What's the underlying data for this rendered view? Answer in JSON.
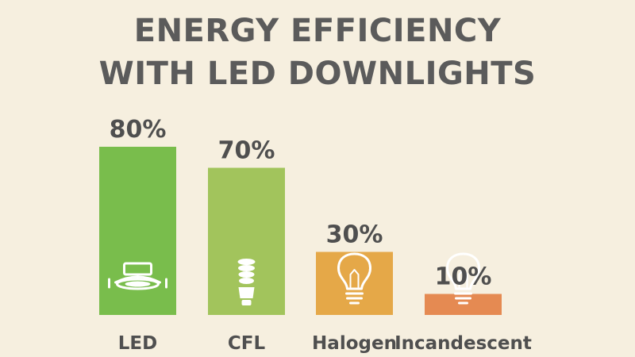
{
  "chart_data": {
    "type": "bar",
    "title_lines": [
      "ENERGY EFFICIENCY",
      "WITH LED DOWNLIGHTS"
    ],
    "categories": [
      "LED",
      "CFL",
      "Halogen",
      "Incandescent"
    ],
    "values": [
      80,
      70,
      30,
      10
    ],
    "value_labels": [
      "80%",
      "70%",
      "30%",
      "10%"
    ],
    "bar_colors": [
      "#79bd4c",
      "#a2c45c",
      "#e5a848",
      "#e58a52"
    ],
    "icons": [
      "led-downlight-icon",
      "cfl-bulb-icon",
      "halogen-bulb-icon",
      "incandescent-bulb-icon"
    ],
    "xlabel": "",
    "ylabel": "",
    "ylim": [
      0,
      100
    ],
    "grid": false,
    "legend": "none"
  },
  "colors": {
    "background": "#f6efdf",
    "title": "#5b5b5b",
    "label": "#4f4f4f"
  }
}
